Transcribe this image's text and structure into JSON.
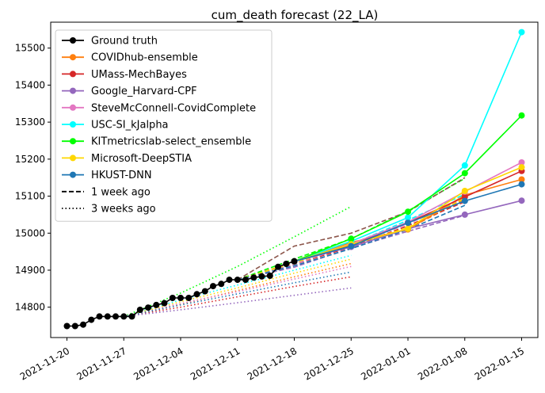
{
  "chart_data": {
    "type": "line",
    "title": "cum_death forecast (22_LA)",
    "xlabel": "",
    "ylabel": "",
    "x_ticks": [
      "2021-11-20",
      "2021-11-27",
      "2021-12-04",
      "2021-12-11",
      "2021-12-18",
      "2021-12-25",
      "2022-01-01",
      "2022-01-08",
      "2022-01-15"
    ],
    "y_ticks": [
      14800,
      14900,
      15000,
      15100,
      15200,
      15300,
      15400,
      15500
    ],
    "xlim": [
      "2021-11-18",
      "2022-01-17"
    ],
    "ylim": [
      14718,
      15570
    ],
    "grid": false,
    "legend_position": "top-left",
    "legend": [
      {
        "label": "Ground truth",
        "color": "#000000",
        "style": "solid-marker"
      },
      {
        "label": "COVIDhub-ensemble",
        "color": "#ff7f0e",
        "style": "solid-marker"
      },
      {
        "label": "UMass-MechBayes",
        "color": "#d62728",
        "style": "solid-marker"
      },
      {
        "label": "Google_Harvard-CPF",
        "color": "#9467bd",
        "style": "solid-marker"
      },
      {
        "label": "SteveMcConnell-CovidComplete",
        "color": "#e377c2",
        "style": "solid-marker"
      },
      {
        "label": "USC-SI_kJalpha",
        "color": "#00ffff",
        "style": "solid-marker"
      },
      {
        "label": "KITmetricslab-select_ensemble",
        "color": "#00ff00",
        "style": "solid-marker"
      },
      {
        "label": "Microsoft-DeepSTIA",
        "color": "#ffd700",
        "style": "solid-marker"
      },
      {
        "label": "HKUST-DNN",
        "color": "#1f77b4",
        "style": "solid-marker"
      },
      {
        "label": "1 week ago",
        "color": "#000000",
        "style": "dashed"
      },
      {
        "label": "3 weeks ago",
        "color": "#000000",
        "style": "dotted"
      }
    ],
    "ground_truth": {
      "name": "Ground truth",
      "color": "#000000",
      "points": [
        [
          "2021-11-20",
          14749
        ],
        [
          "2021-11-21",
          14749
        ],
        [
          "2021-11-22",
          14753
        ],
        [
          "2021-11-23",
          14766
        ],
        [
          "2021-11-24",
          14775
        ],
        [
          "2021-11-25",
          14775
        ],
        [
          "2021-11-26",
          14775
        ],
        [
          "2021-11-27",
          14775
        ],
        [
          "2021-11-28",
          14775
        ],
        [
          "2021-11-29",
          14793
        ],
        [
          "2021-11-30",
          14799
        ],
        [
          "2021-12-01",
          14806
        ],
        [
          "2021-12-02",
          14811
        ],
        [
          "2021-12-03",
          14825
        ],
        [
          "2021-12-04",
          14825
        ],
        [
          "2021-12-05",
          14825
        ],
        [
          "2021-12-06",
          14835
        ],
        [
          "2021-12-07",
          14843
        ],
        [
          "2021-12-08",
          14857
        ],
        [
          "2021-12-09",
          14863
        ],
        [
          "2021-12-10",
          14874
        ],
        [
          "2021-12-11",
          14874
        ],
        [
          "2021-12-12",
          14874
        ],
        [
          "2021-12-13",
          14880
        ],
        [
          "2021-12-14",
          14883
        ],
        [
          "2021-12-15",
          14885
        ],
        [
          "2021-12-16",
          14909
        ],
        [
          "2021-12-17",
          14917
        ],
        [
          "2021-12-18",
          14924
        ]
      ]
    },
    "series": [
      {
        "name": "COVIDhub-ensemble",
        "color": "#ff7f0e",
        "current": [
          [
            "2021-12-18",
            14924
          ],
          [
            "2021-12-25",
            14975
          ],
          [
            "2022-01-01",
            15010
          ],
          [
            "2022-01-08",
            15103
          ],
          [
            "2022-01-15",
            15145
          ]
        ],
        "week_ago": [
          [
            "2021-12-11",
            14874
          ],
          [
            "2021-12-18",
            14922
          ],
          [
            "2021-12-25",
            14967
          ],
          [
            "2022-01-01",
            15012
          ],
          [
            "2022-01-08",
            15092
          ]
        ],
        "three_weeks_ago": [
          [
            "2021-11-27",
            14775
          ],
          [
            "2021-12-04",
            14808
          ],
          [
            "2021-12-11",
            14845
          ],
          [
            "2021-12-18",
            14882
          ],
          [
            "2021-12-25",
            14918
          ]
        ]
      },
      {
        "name": "UMass-MechBayes",
        "color": "#d62728",
        "current": [
          [
            "2021-12-18",
            14924
          ],
          [
            "2021-12-25",
            14968
          ],
          [
            "2022-01-01",
            15028
          ],
          [
            "2022-01-08",
            15098
          ],
          [
            "2022-01-15",
            15168
          ]
        ],
        "week_ago": [
          [
            "2021-12-11",
            14874
          ],
          [
            "2021-12-18",
            14916
          ],
          [
            "2021-12-25",
            14963
          ],
          [
            "2022-01-01",
            15020
          ],
          [
            "2022-01-08",
            15085
          ]
        ],
        "three_weeks_ago": [
          [
            "2021-11-27",
            14775
          ],
          [
            "2021-12-04",
            14800
          ],
          [
            "2021-12-11",
            14828
          ],
          [
            "2021-12-18",
            14856
          ],
          [
            "2021-12-25",
            14882
          ]
        ]
      },
      {
        "name": "Google_Harvard-CPF",
        "color": "#9467bd",
        "current": [
          [
            "2021-12-18",
            14924
          ],
          [
            "2021-12-25",
            14963
          ],
          [
            "2022-01-01",
            15012
          ],
          [
            "2022-01-08",
            15050
          ],
          [
            "2022-01-15",
            15088
          ]
        ],
        "week_ago": [
          [
            "2021-12-11",
            14874
          ],
          [
            "2021-12-18",
            14908
          ],
          [
            "2021-12-25",
            14960
          ],
          [
            "2022-01-01",
            15005
          ],
          [
            "2022-01-08",
            15048
          ]
        ],
        "three_weeks_ago": [
          [
            "2021-11-27",
            14775
          ],
          [
            "2021-12-04",
            14793
          ],
          [
            "2021-12-11",
            14812
          ],
          [
            "2021-12-18",
            14832
          ],
          [
            "2021-12-25",
            14852
          ]
        ]
      },
      {
        "name": "SteveMcConnell-CovidComplete",
        "color": "#e377c2",
        "current": [
          [
            "2021-12-18",
            14924
          ],
          [
            "2021-12-25",
            14971
          ],
          [
            "2022-01-01",
            15030
          ],
          [
            "2022-01-08",
            15112
          ],
          [
            "2022-01-15",
            15191
          ]
        ],
        "week_ago": [
          [
            "2021-12-11",
            14874
          ],
          [
            "2021-12-18",
            14916
          ],
          [
            "2021-12-25",
            14968
          ],
          [
            "2022-01-01",
            15025
          ],
          [
            "2022-01-08",
            15095
          ]
        ],
        "three_weeks_ago": [
          [
            "2021-11-27",
            14775
          ],
          [
            "2021-12-04",
            14810
          ],
          [
            "2021-12-11",
            14842
          ],
          [
            "2021-12-18",
            14876
          ],
          [
            "2021-12-25",
            14910
          ]
        ]
      },
      {
        "name": "USC-SI_kJalpha",
        "color": "#00ffff",
        "current": [
          [
            "2021-12-18",
            14924
          ],
          [
            "2021-12-25",
            14978
          ],
          [
            "2022-01-01",
            15042
          ],
          [
            "2022-01-08",
            15183
          ],
          [
            "2022-01-15",
            15543
          ]
        ],
        "week_ago": [
          [
            "2021-12-11",
            14874
          ],
          [
            "2021-12-18",
            14920
          ],
          [
            "2021-12-25",
            14970
          ],
          [
            "2022-01-01",
            15035
          ],
          [
            "2022-01-08",
            15105
          ]
        ],
        "three_weeks_ago": [
          [
            "2021-11-27",
            14775
          ],
          [
            "2021-12-04",
            14820
          ],
          [
            "2021-12-11",
            14860
          ],
          [
            "2021-12-18",
            14900
          ],
          [
            "2021-12-25",
            14940
          ]
        ]
      },
      {
        "name": "KITmetricslab-select_ensemble",
        "color": "#00ff00",
        "current": [
          [
            "2021-12-18",
            14924
          ],
          [
            "2021-12-25",
            14985
          ],
          [
            "2022-01-01",
            15058
          ],
          [
            "2022-01-08",
            15162
          ],
          [
            "2022-01-15",
            15318
          ]
        ],
        "week_ago": [
          [
            "2021-12-11",
            14874
          ],
          [
            "2021-12-18",
            14930
          ],
          [
            "2021-12-25",
            14985
          ],
          [
            "2022-01-01",
            15060
          ],
          [
            "2022-01-08",
            15148
          ]
        ],
        "three_weeks_ago": [
          [
            "2021-11-27",
            14775
          ],
          [
            "2021-12-04",
            14838
          ],
          [
            "2021-12-11",
            14910
          ],
          [
            "2021-12-18",
            14990
          ],
          [
            "2021-12-25",
            15072
          ]
        ]
      },
      {
        "name": "Microsoft-DeepSTIA",
        "color": "#ffd700",
        "current": [
          [
            "2021-12-18",
            14924
          ],
          [
            "2021-12-25",
            14970
          ],
          [
            "2022-01-01",
            15012
          ],
          [
            "2022-01-08",
            15114
          ],
          [
            "2022-01-15",
            15178
          ]
        ],
        "week_ago": [
          [
            "2021-12-11",
            14874
          ],
          [
            "2021-12-18",
            14920
          ],
          [
            "2021-12-25",
            14968
          ],
          [
            "2022-01-01",
            15015
          ],
          [
            "2022-01-08",
            15095
          ]
        ],
        "three_weeks_ago": [
          [
            "2021-11-27",
            14775
          ],
          [
            "2021-12-04",
            14815
          ],
          [
            "2021-12-11",
            14852
          ],
          [
            "2021-12-18",
            14892
          ],
          [
            "2021-12-25",
            14930
          ]
        ]
      },
      {
        "name": "HKUST-DNN",
        "color": "#1f77b4",
        "current": [
          [
            "2021-12-18",
            14924
          ],
          [
            "2021-12-25",
            14965
          ],
          [
            "2022-01-01",
            15028
          ],
          [
            "2022-01-08",
            15087
          ],
          [
            "2022-01-15",
            15132
          ]
        ],
        "week_ago": [
          [
            "2021-12-11",
            14874
          ],
          [
            "2021-12-18",
            14912
          ],
          [
            "2021-12-25",
            14958
          ],
          [
            "2022-01-01",
            15010
          ],
          [
            "2022-01-08",
            15075
          ]
        ],
        "three_weeks_ago": [
          [
            "2021-11-27",
            14775
          ],
          [
            "2021-12-04",
            14806
          ],
          [
            "2021-12-11",
            14836
          ],
          [
            "2021-12-18",
            14866
          ],
          [
            "2021-12-25",
            14895
          ]
        ]
      },
      {
        "name": "",
        "color": "#8c564b",
        "week_ago": [
          [
            "2021-12-11",
            14874
          ],
          [
            "2021-12-18",
            14965
          ],
          [
            "2021-12-25",
            15000
          ],
          [
            "2022-01-01",
            15058
          ],
          [
            "2022-01-08",
            15150
          ]
        ]
      }
    ]
  }
}
